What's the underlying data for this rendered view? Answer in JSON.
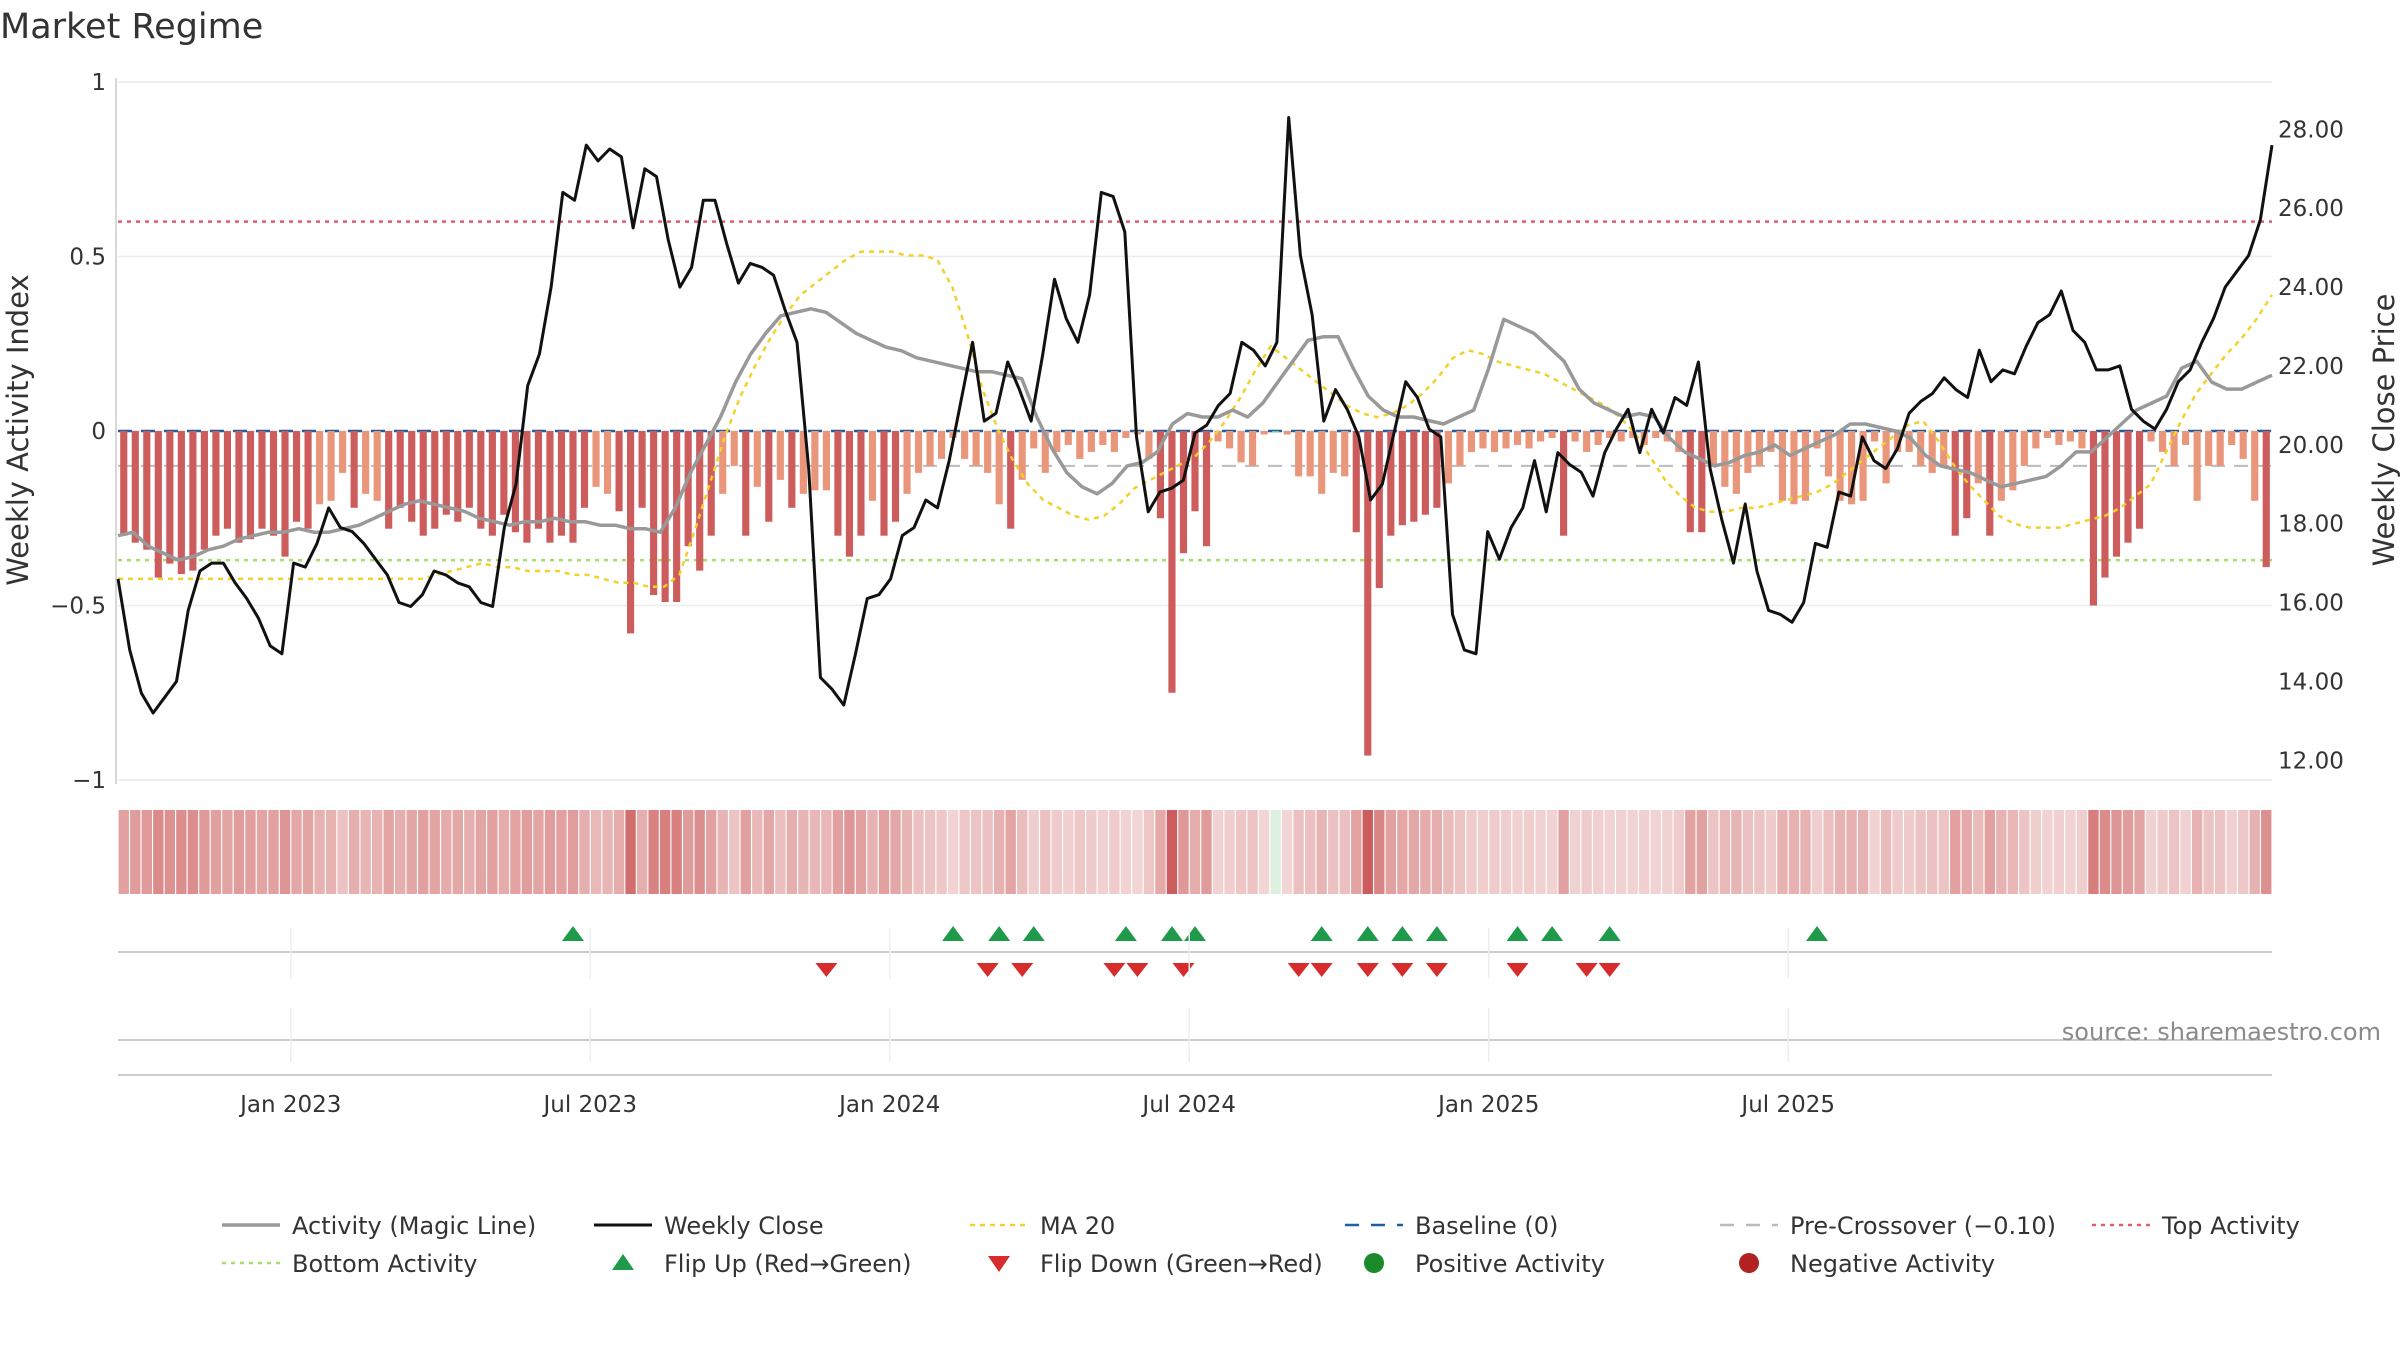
{
  "chart_data": {
    "type": "bar",
    "title": "Market Regime",
    "ylabel_left": "Weekly Activity Index",
    "ylabel_right": "Weekly Close Price",
    "ylim_left": [
      -1,
      1
    ],
    "ylim_right": [
      11.5,
      29.2
    ],
    "left_ticks": [
      {
        "value": 1,
        "label": "1"
      },
      {
        "value": 0.5,
        "label": "0.5"
      },
      {
        "value": 0,
        "label": "0"
      },
      {
        "value": -0.5,
        "label": "−0.5"
      },
      {
        "value": -1,
        "label": "−1"
      }
    ],
    "right_ticks": [
      {
        "value": 28,
        "label": "28.00"
      },
      {
        "value": 26,
        "label": "26.00"
      },
      {
        "value": 24,
        "label": "24.00"
      },
      {
        "value": 22,
        "label": "22.00"
      },
      {
        "value": 20,
        "label": "20.00"
      },
      {
        "value": 18,
        "label": "18.00"
      },
      {
        "value": 16,
        "label": "16.00"
      },
      {
        "value": 14,
        "label": "14.00"
      },
      {
        "value": 12,
        "label": "12.00"
      }
    ],
    "date_ticks": [
      {
        "week": 14.5,
        "label": "Jan 2023"
      },
      {
        "week": 40.5,
        "label": "Jul 2023"
      },
      {
        "week": 66.5,
        "label": "Jan 2024"
      },
      {
        "week": 92.5,
        "label": "Jul 2024"
      },
      {
        "week": 118.5,
        "label": "Jan 2025"
      },
      {
        "week": 144.5,
        "label": "Jul 2025"
      }
    ],
    "reference_lines": {
      "top_activity": 0.6,
      "bottom_activity": -0.37,
      "baseline": 0,
      "pre_crossover": -0.1
    },
    "activity": [
      -0.3,
      -0.32,
      -0.34,
      -0.42,
      -0.38,
      -0.41,
      -0.4,
      -0.34,
      -0.3,
      -0.28,
      -0.32,
      -0.31,
      -0.28,
      -0.3,
      -0.36,
      -0.26,
      -0.28,
      -0.21,
      -0.2,
      -0.12,
      -0.22,
      -0.18,
      -0.2,
      -0.28,
      -0.22,
      -0.26,
      -0.3,
      -0.28,
      -0.24,
      -0.26,
      -0.22,
      -0.28,
      -0.3,
      -0.24,
      -0.29,
      -0.32,
      -0.28,
      -0.32,
      -0.3,
      -0.32,
      -0.22,
      -0.16,
      -0.18,
      -0.23,
      -0.58,
      -0.22,
      -0.47,
      -0.49,
      -0.49,
      -0.33,
      -0.4,
      -0.3,
      -0.18,
      -0.1,
      -0.3,
      -0.16,
      -0.26,
      -0.14,
      -0.22,
      -0.18,
      -0.17,
      -0.17,
      -0.3,
      -0.36,
      -0.3,
      -0.2,
      -0.3,
      -0.26,
      -0.18,
      -0.12,
      -0.1,
      -0.08,
      -0.02,
      -0.08,
      -0.1,
      -0.12,
      -0.21,
      -0.28,
      -0.14,
      -0.05,
      -0.12,
      -0.06,
      -0.04,
      -0.08,
      -0.06,
      -0.04,
      -0.06,
      -0.02,
      -0.01,
      -0.08,
      -0.25,
      -0.75,
      -0.35,
      -0.23,
      -0.33,
      -0.03,
      -0.05,
      -0.09,
      -0.1,
      -0.01,
      -0.0,
      -0.01,
      -0.13,
      -0.13,
      -0.18,
      -0.12,
      -0.13,
      -0.29,
      -0.93,
      -0.45,
      -0.3,
      -0.27,
      -0.26,
      -0.24,
      -0.22,
      -0.15,
      -0.1,
      -0.06,
      -0.05,
      -0.06,
      -0.05,
      -0.04,
      -0.05,
      -0.03,
      -0.02,
      -0.3,
      -0.03,
      -0.06,
      -0.04,
      -0.02,
      -0.03,
      -0.02,
      -0.04,
      -0.02,
      -0.03,
      -0.06,
      -0.29,
      -0.29,
      -0.1,
      -0.16,
      -0.18,
      -0.12,
      -0.1,
      -0.06,
      -0.2,
      -0.21,
      -0.2,
      -0.05,
      -0.13,
      -0.2,
      -0.21,
      -0.2,
      -0.03,
      -0.15,
      -0.06,
      -0.06,
      -0.1,
      -0.12,
      -0.1,
      -0.3,
      -0.25,
      -0.15,
      -0.3,
      -0.2,
      -0.17,
      -0.1,
      -0.05,
      -0.02,
      -0.04,
      -0.03,
      -0.05,
      -0.5,
      -0.42,
      -0.36,
      -0.32,
      -0.28,
      -0.03,
      -0.06,
      -0.1,
      -0.04,
      -0.2,
      -0.1,
      -0.1,
      -0.04,
      -0.08,
      -0.2,
      -0.39
    ],
    "magic_line": [
      -0.3,
      -0.29,
      -0.33,
      -0.35,
      -0.37,
      -0.36,
      -0.34,
      -0.33,
      -0.31,
      -0.3,
      -0.29,
      -0.29,
      -0.28,
      -0.29,
      -0.29,
      -0.28,
      -0.27,
      -0.25,
      -0.23,
      -0.21,
      -0.2,
      -0.21,
      -0.22,
      -0.23,
      -0.25,
      -0.26,
      -0.27,
      -0.26,
      -0.26,
      -0.25,
      -0.26,
      -0.26,
      -0.27,
      -0.27,
      -0.28,
      -0.28,
      -0.29,
      -0.22,
      -0.12,
      -0.04,
      0.04,
      0.14,
      0.22,
      0.28,
      0.33,
      0.34,
      0.35,
      0.34,
      0.31,
      0.28,
      0.26,
      0.24,
      0.23,
      0.21,
      0.2,
      0.19,
      0.18,
      0.17,
      0.17,
      0.16,
      0.15,
      0.04,
      -0.05,
      -0.12,
      -0.16,
      -0.18,
      -0.15,
      -0.1,
      -0.09,
      -0.06,
      0.02,
      0.05,
      0.04,
      0.04,
      0.06,
      0.04,
      0.08,
      0.14,
      0.2,
      0.26,
      0.27,
      0.27,
      0.18,
      0.1,
      0.06,
      0.04,
      0.04,
      0.03,
      0.02,
      0.04,
      0.06,
      0.18,
      0.32,
      0.3,
      0.28,
      0.24,
      0.2,
      0.12,
      0.08,
      0.06,
      0.04,
      0.05,
      0.04,
      -0.02,
      -0.06,
      -0.08,
      -0.1,
      -0.09,
      -0.07,
      -0.06,
      -0.04,
      -0.07,
      -0.05,
      -0.03,
      -0.01,
      0.02,
      0.02,
      0.01,
      0.0,
      -0.02,
      -0.07,
      -0.1,
      -0.11,
      -0.12,
      -0.14,
      -0.16,
      -0.15,
      -0.14,
      -0.13,
      -0.1,
      -0.06,
      -0.06,
      -0.02,
      0.02,
      0.06,
      0.08,
      0.1,
      0.18,
      0.2,
      0.14,
      0.12,
      0.12,
      0.14,
      0.16
    ],
    "ma20": [
      16.6,
      16.6,
      16.6,
      16.6,
      16.6,
      16.6,
      16.6,
      16.6,
      16.6,
      16.6,
      16.6,
      16.6,
      16.6,
      16.6,
      16.6,
      16.6,
      16.6,
      16.6,
      16.6,
      16.6,
      16.6,
      16.7,
      16.8,
      16.9,
      17.0,
      16.9,
      16.9,
      16.8,
      16.8,
      16.8,
      16.7,
      16.7,
      16.6,
      16.5,
      16.5,
      16.4,
      16.4,
      16.7,
      17.8,
      19.0,
      20.2,
      21.2,
      22.0,
      22.7,
      23.3,
      23.8,
      24.1,
      24.4,
      24.7,
      24.9,
      24.9,
      24.9,
      24.8,
      24.8,
      24.7,
      24.0,
      22.8,
      21.4,
      20.4,
      19.6,
      19.0,
      18.6,
      18.4,
      18.2,
      18.1,
      18.2,
      18.5,
      18.9,
      19.1,
      19.3,
      19.5,
      19.7,
      20.1,
      20.6,
      21.2,
      21.9,
      22.5,
      22.2,
      21.9,
      21.6,
      21.3,
      21.0,
      20.8,
      20.7,
      20.8,
      21.0,
      21.3,
      21.7,
      22.2,
      22.4,
      22.3,
      22.1,
      22.0,
      21.9,
      21.8,
      21.6,
      21.4,
      21.2,
      21.0,
      20.7,
      20.3,
      19.7,
      19.1,
      18.7,
      18.4,
      18.3,
      18.3,
      18.4,
      18.4,
      18.5,
      18.6,
      18.7,
      18.8,
      19.0,
      19.3,
      19.6,
      19.9,
      20.2,
      20.5,
      20.6,
      20.1,
      19.5,
      19.0,
      18.6,
      18.2,
      18.0,
      17.9,
      17.9,
      17.9,
      18.0,
      18.1,
      18.2,
      18.4,
      18.7,
      19.0,
      19.8,
      20.6,
      21.3,
      21.8,
      22.3,
      22.7,
      23.2,
      23.8
    ],
    "close": [
      16.6,
      14.8,
      13.7,
      13.2,
      13.6,
      14.0,
      15.8,
      16.8,
      17.0,
      17.0,
      16.5,
      16.1,
      15.6,
      14.9,
      14.7,
      17.0,
      16.9,
      17.5,
      18.4,
      17.9,
      17.8,
      17.5,
      17.1,
      16.7,
      16.0,
      15.9,
      16.2,
      16.8,
      16.7,
      16.5,
      16.4,
      16.0,
      15.9,
      17.9,
      19.0,
      21.5,
      22.3,
      24.0,
      26.4,
      26.2,
      27.6,
      27.2,
      27.5,
      27.3,
      25.5,
      27.0,
      26.8,
      25.2,
      24.0,
      24.5,
      26.2,
      26.2,
      25.1,
      24.1,
      24.6,
      24.5,
      24.3,
      23.4,
      22.6,
      19.4,
      14.1,
      13.8,
      13.4,
      14.7,
      16.1,
      16.2,
      16.6,
      17.7,
      17.9,
      18.6,
      18.4,
      19.6,
      21.1,
      22.6,
      20.6,
      20.8,
      22.1,
      21.4,
      20.6,
      22.3,
      24.2,
      23.2,
      22.6,
      23.8,
      26.4,
      26.3,
      25.4,
      20.2,
      18.3,
      18.8,
      18.9,
      19.1,
      20.3,
      20.5,
      21.0,
      21.3,
      22.6,
      22.4,
      22.0,
      22.6,
      28.3,
      24.8,
      23.3,
      20.6,
      21.4,
      20.9,
      20.2,
      18.6,
      19.0,
      20.3,
      21.6,
      21.2,
      20.4,
      20.2,
      15.7,
      14.8,
      14.7,
      17.8,
      17.1,
      17.9,
      18.4,
      19.6,
      18.3,
      19.8,
      19.5,
      19.3,
      18.7,
      19.8,
      20.4,
      20.9,
      19.8,
      20.9,
      20.3,
      21.2,
      21.0,
      22.1,
      19.4,
      18.1,
      17.0,
      18.5,
      16.8,
      15.8,
      15.7,
      15.5,
      16.0,
      17.5,
      17.4,
      18.8,
      18.7,
      20.2,
      19.6,
      19.4,
      19.9,
      20.8,
      21.1,
      21.3,
      21.7,
      21.4,
      21.2,
      22.4,
      21.6,
      21.9,
      21.8,
      22.5,
      23.1,
      23.3,
      23.9,
      22.9,
      22.6,
      21.9,
      21.9,
      22.0,
      20.9,
      20.6,
      20.4,
      20.9,
      21.6,
      21.9,
      22.6,
      23.2,
      24.0,
      24.4,
      24.8,
      25.7,
      27.6
    ],
    "flip_up": [
      39,
      72,
      76,
      79,
      87,
      91,
      93,
      104,
      108,
      111,
      114,
      121,
      124,
      129,
      147
    ],
    "flip_down": [
      61,
      75,
      78,
      86,
      88,
      92,
      102,
      104,
      108,
      111,
      114,
      121,
      127,
      129
    ],
    "source": "source: sharemaestro.com",
    "legend": [
      {
        "label": "Activity (Magic Line)",
        "style": "magic"
      },
      {
        "label": "Weekly Close",
        "style": "close"
      },
      {
        "label": "MA 20",
        "style": "ma20"
      },
      {
        "label": "Baseline (0)",
        "style": "baseline"
      },
      {
        "label": "Pre-Crossover (−0.10)",
        "style": "precross"
      },
      {
        "label": "Top Activity",
        "style": "top"
      },
      {
        "label": "Bottom Activity",
        "style": "bottom"
      },
      {
        "label": "Flip Up (Red→Green)",
        "style": "flipup"
      },
      {
        "label": "Flip Down (Green→Red)",
        "style": "flipdown"
      },
      {
        "label": "Positive Activity",
        "style": "posdot"
      },
      {
        "label": "Negative Activity",
        "style": "negdot"
      }
    ],
    "colors": {
      "pos_strong": "#2e8b57",
      "pos_weak": "#7cc47f",
      "neg_strong": "#cd5c5c",
      "neg_weak": "#e9967a",
      "magic": "#999999",
      "close": "#111111",
      "ma20": "#f2d12a",
      "baseline": "#1f5fa0",
      "precross": "#bbbbbb",
      "top": "#e05c6e",
      "bottom": "#a6de6a",
      "flip_up": "#1f9a4a",
      "flip_down": "#d62c2c",
      "pos_dot": "#1b8a2a",
      "neg_dot": "#b22222"
    }
  }
}
